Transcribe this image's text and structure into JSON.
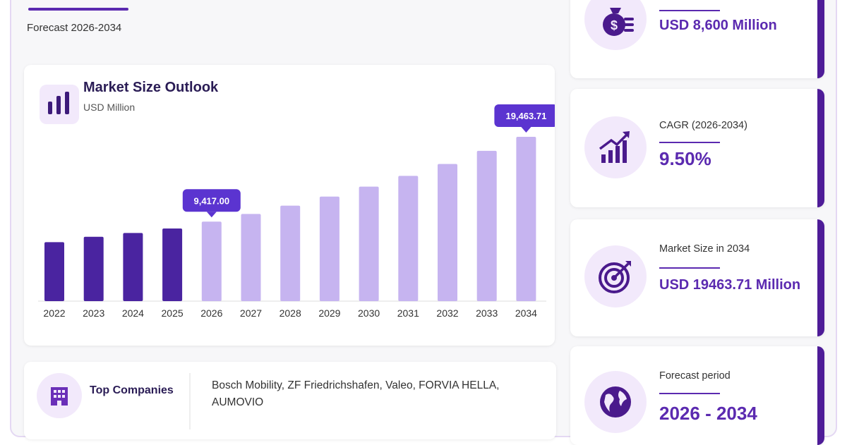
{
  "header": {
    "forecast_label": "Forecast 2026-2034"
  },
  "chart_data": {
    "type": "bar",
    "title": "Market Size Outlook",
    "unit": "USD Million",
    "categories": [
      "2022",
      "2023",
      "2024",
      "2025",
      "2026",
      "2027",
      "2028",
      "2029",
      "2030",
      "2031",
      "2032",
      "2033",
      "2034"
    ],
    "values": [
      6990,
      7620,
      8070,
      8600,
      9417.0,
      10330,
      11310,
      12380,
      13560,
      14840,
      16250,
      17800,
      19463.71
    ],
    "historical_color": "#4a24a0",
    "forecast_color": "#c6b4f0",
    "callouts": [
      {
        "index": 4,
        "label": "9,417.00"
      },
      {
        "index": 12,
        "label": "19,463.71"
      }
    ],
    "callout_color": "#5b34d0"
  },
  "companies": {
    "label": "Top Companies",
    "text": "Bosch Mobility, ZF Friedrichshafen, Valeo, FORVIA HELLA, AUMOVIO"
  },
  "stats": [
    {
      "label": "",
      "value": "USD 8,600 Million",
      "icon": "money-bag-icon"
    },
    {
      "label": "CAGR (2026-2034)",
      "value": "9.50%",
      "icon": "growth-chart-icon"
    },
    {
      "label": "Market Size in 2034",
      "value": "USD 19463.71 Million",
      "icon": "target-icon"
    },
    {
      "label": "Forecast period",
      "value": "2026 - 2034",
      "icon": "globe-icon"
    }
  ],
  "colors": {
    "accent": "#5b2ab0",
    "accent_dark": "#4e1c98",
    "icon_bg": "#f2e9fb"
  }
}
